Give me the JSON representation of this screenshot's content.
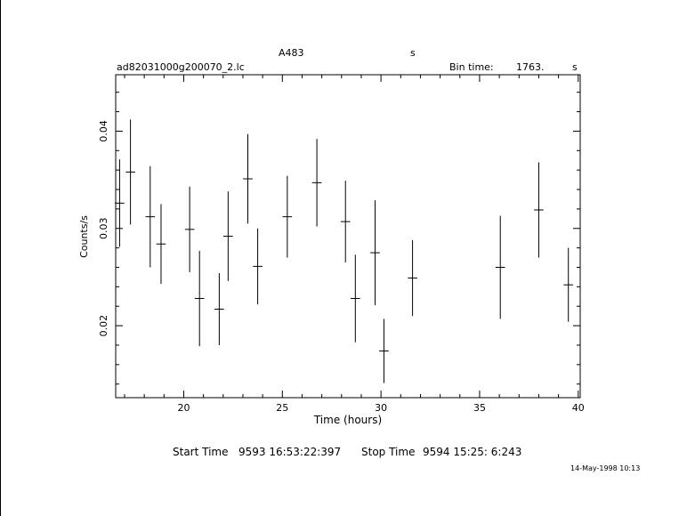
{
  "header": {
    "object": "A483",
    "object_unit": "s",
    "filename": "ad82031000g200070_2.lc",
    "bin_time_label": "Bin time:",
    "bin_time_value": "1763.",
    "bin_time_unit": "s"
  },
  "footer": {
    "start_label": "Start Time",
    "start_value": "9593 16:53:22:397",
    "stop_label": "Stop Time",
    "stop_value": "9594 15:25: 6:243",
    "date_stamp": "14-May-1998 10:13"
  },
  "chart_data": {
    "type": "scatter",
    "title": "",
    "xlabel": "Time (hours)",
    "ylabel": "Counts/s",
    "xlim": [
      16.55,
      40.1
    ],
    "ylim": [
      0.0126,
      0.0458
    ],
    "xticks": [
      20,
      25,
      30,
      35,
      40
    ],
    "yticks": [
      0.02,
      0.03,
      0.04
    ],
    "ytick_labels": [
      "0.02",
      "0.03",
      "0.04"
    ],
    "grid": false,
    "points": [
      {
        "x": 16.75,
        "y": 0.0326,
        "yerr": 0.0045,
        "xerr": 0.24
      },
      {
        "x": 17.3,
        "y": 0.0358,
        "yerr": 0.0054,
        "xerr": 0.24
      },
      {
        "x": 18.3,
        "y": 0.0312,
        "yerr": 0.0052,
        "xerr": 0.24
      },
      {
        "x": 18.85,
        "y": 0.0284,
        "yerr": 0.0041,
        "xerr": 0.24
      },
      {
        "x": 20.3,
        "y": 0.0299,
        "yerr": 0.0044,
        "xerr": 0.24
      },
      {
        "x": 20.8,
        "y": 0.0228,
        "yerr": 0.0049,
        "xerr": 0.24
      },
      {
        "x": 21.8,
        "y": 0.0217,
        "yerr": 0.0037,
        "xerr": 0.24
      },
      {
        "x": 22.25,
        "y": 0.0292,
        "yerr": 0.0046,
        "xerr": 0.24
      },
      {
        "x": 23.25,
        "y": 0.0351,
        "yerr": 0.0046,
        "xerr": 0.24
      },
      {
        "x": 23.75,
        "y": 0.0261,
        "yerr": 0.0039,
        "xerr": 0.24
      },
      {
        "x": 25.25,
        "y": 0.0312,
        "yerr": 0.0042,
        "xerr": 0.24
      },
      {
        "x": 26.75,
        "y": 0.0347,
        "yerr": 0.0045,
        "xerr": 0.24
      },
      {
        "x": 28.2,
        "y": 0.0307,
        "yerr": 0.0042,
        "xerr": 0.24
      },
      {
        "x": 28.7,
        "y": 0.0228,
        "yerr": 0.0045,
        "xerr": 0.24
      },
      {
        "x": 29.7,
        "y": 0.0275,
        "yerr": 0.0054,
        "xerr": 0.24
      },
      {
        "x": 30.15,
        "y": 0.0174,
        "yerr": 0.0033,
        "xerr": 0.24
      },
      {
        "x": 31.6,
        "y": 0.0249,
        "yerr": 0.0039,
        "xerr": 0.24
      },
      {
        "x": 36.05,
        "y": 0.026,
        "yerr": 0.0053,
        "xerr": 0.24
      },
      {
        "x": 38.0,
        "y": 0.0319,
        "yerr": 0.0049,
        "xerr": 0.24
      },
      {
        "x": 39.5,
        "y": 0.0242,
        "yerr": 0.0038,
        "xerr": 0.24
      }
    ]
  }
}
